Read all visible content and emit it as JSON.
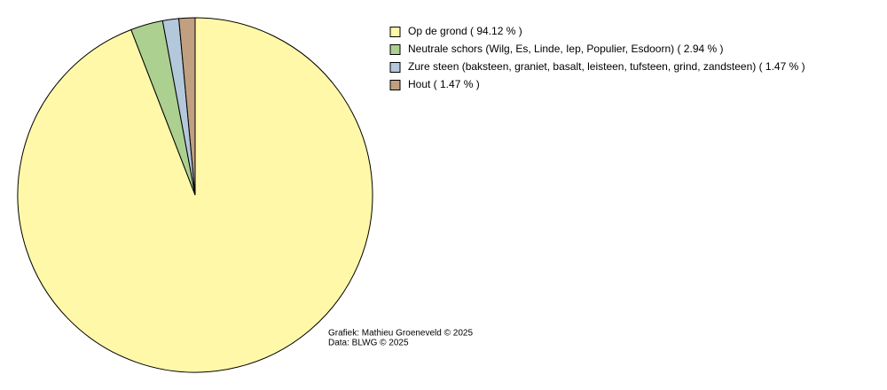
{
  "chart_data": {
    "type": "pie",
    "values": [
      94.12,
      2.94,
      1.47,
      1.47
    ],
    "value_labels": [
      "Op de grond ( 94.12 % )",
      "Neutrale schors (Wilg, Es, Linde, Iep, Populier, Esdoorn) ( 2.94 % )",
      "Zure steen (baksteen, graniet, basalt, leisteen, tufsteen, grind, zandsteen) ( 1.47 % )",
      "Hout ( 1.47 % )"
    ],
    "colors": [
      "#fff8a8",
      "#acd090",
      "#b4c8dc",
      "#c0a080"
    ],
    "credits": [
      "Grafiek: Mathieu Groeneveld © 2025",
      "Data: BLWG © 2025"
    ]
  }
}
